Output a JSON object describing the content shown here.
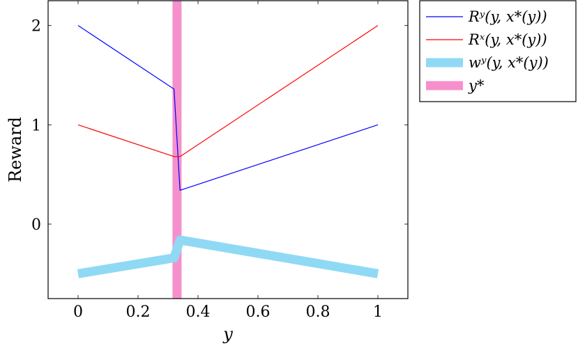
{
  "chart_data": {
    "type": "line",
    "xlabel": "y",
    "ylabel": "Reward",
    "xlim": [
      -0.1,
      1.1
    ],
    "ylim": [
      -0.75,
      2.25
    ],
    "xticks": [
      0,
      0.2,
      0.4,
      0.6,
      0.8,
      1
    ],
    "xtick_labels": [
      "0",
      "0.2",
      "0.4",
      "0.6",
      "0.8",
      "1"
    ],
    "yticks": [
      0,
      1,
      2
    ],
    "ytick_labels": [
      "0",
      "1",
      "2"
    ],
    "grid": false,
    "legend_position": "outside-top-right",
    "series": [
      {
        "name": "Rʸ(y, x*(y))",
        "color": "#0000ff",
        "style": "thin",
        "x": [
          0,
          0.32,
          0.34,
          1
        ],
        "y": [
          2.0,
          1.36,
          0.34,
          1.0
        ]
      },
      {
        "name": "Rˣ(y, x*(y))",
        "color": "#ff0000",
        "style": "thin",
        "x": [
          0,
          0.32,
          0.34,
          1
        ],
        "y": [
          1.0,
          0.68,
          0.68,
          2.0
        ]
      },
      {
        "name": "wʸ(y, x*(y))",
        "color": "#8fd9f5",
        "style": "thick",
        "x": [
          0,
          0.32,
          0.34,
          1
        ],
        "y": [
          -0.5,
          -0.34,
          -0.16,
          -0.5
        ]
      }
    ],
    "vline": {
      "name": "y*",
      "color": "#f690cc",
      "x": 0.33
    }
  }
}
